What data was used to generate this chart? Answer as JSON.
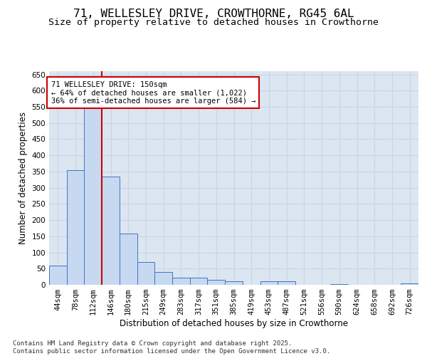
{
  "title_line1": "71, WELLESLEY DRIVE, CROWTHORNE, RG45 6AL",
  "title_line2": "Size of property relative to detached houses in Crowthorne",
  "xlabel": "Distribution of detached houses by size in Crowthorne",
  "ylabel": "Number of detached properties",
  "categories": [
    "44sqm",
    "78sqm",
    "112sqm",
    "146sqm",
    "180sqm",
    "215sqm",
    "249sqm",
    "283sqm",
    "317sqm",
    "351sqm",
    "385sqm",
    "419sqm",
    "453sqm",
    "487sqm",
    "521sqm",
    "556sqm",
    "590sqm",
    "624sqm",
    "658sqm",
    "692sqm",
    "726sqm"
  ],
  "values": [
    60,
    355,
    545,
    335,
    158,
    70,
    40,
    22,
    22,
    15,
    10,
    0,
    10,
    10,
    0,
    0,
    3,
    0,
    0,
    0,
    5
  ],
  "bar_color": "#c6d9f0",
  "bar_edge_color": "#4472c4",
  "grid_color": "#c8d4e8",
  "background_color": "#dce6f1",
  "vline_x": 2.5,
  "vline_color": "#cc0000",
  "annotation_line1": "71 WELLESLEY DRIVE: 150sqm",
  "annotation_line2": "← 64% of detached houses are smaller (1,022)",
  "annotation_line3": "36% of semi-detached houses are larger (584) →",
  "ylim": [
    0,
    660
  ],
  "yticks": [
    0,
    50,
    100,
    150,
    200,
    250,
    300,
    350,
    400,
    450,
    500,
    550,
    600,
    650
  ],
  "footnote": "Contains HM Land Registry data © Crown copyright and database right 2025.\nContains public sector information licensed under the Open Government Licence v3.0.",
  "title_fontsize": 11.5,
  "subtitle_fontsize": 9.5,
  "axis_label_fontsize": 8.5,
  "tick_fontsize": 7.5,
  "annotation_fontsize": 7.5,
  "footnote_fontsize": 6.5
}
